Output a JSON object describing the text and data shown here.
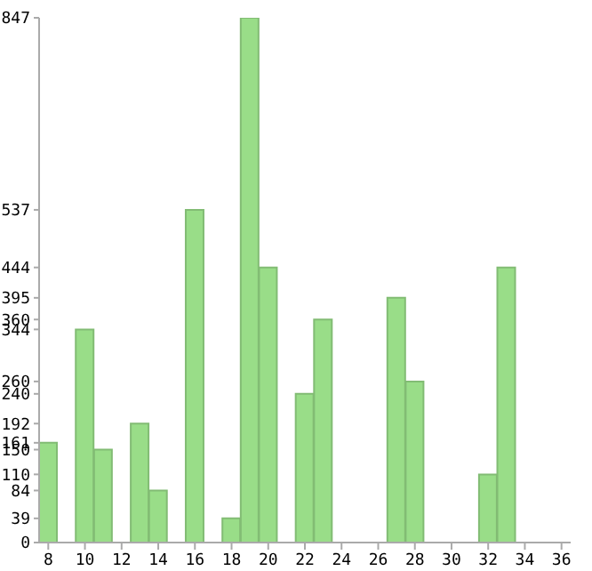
{
  "chart_data": {
    "type": "bar",
    "x": [
      8,
      9,
      10,
      11,
      12,
      13,
      14,
      15,
      16,
      17,
      18,
      19,
      20,
      21,
      22,
      23,
      24,
      25,
      26,
      27,
      28,
      29,
      30,
      31,
      32,
      33,
      34,
      35,
      36
    ],
    "values": [
      161,
      0,
      344,
      150,
      0,
      192,
      84,
      0,
      537,
      0,
      39,
      847,
      444,
      0,
      240,
      360,
      0,
      0,
      0,
      395,
      260,
      0,
      0,
      0,
      110,
      444,
      0,
      0,
      0
    ],
    "color": "#99dd88",
    "xlim": [
      7.5,
      36.5
    ],
    "xticks": [
      8,
      10,
      12,
      14,
      16,
      18,
      20,
      22,
      24,
      26,
      28,
      30,
      32,
      34,
      36
    ],
    "ylim": [
      0,
      847
    ],
    "yticks": [
      0,
      39,
      84,
      110,
      150,
      161,
      192,
      240,
      260,
      344,
      360,
      395,
      444,
      537,
      847
    ],
    "grid": false,
    "legend": false
  }
}
